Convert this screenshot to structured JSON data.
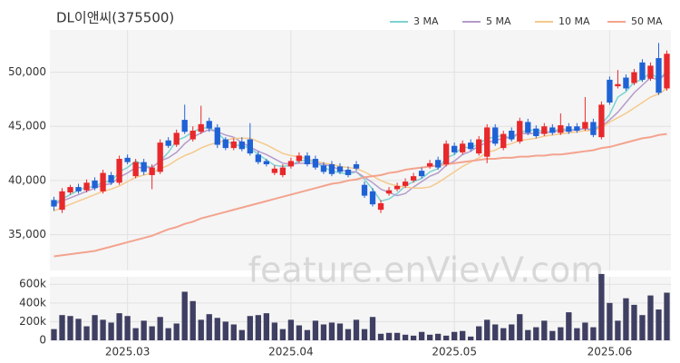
{
  "chart_data": {
    "type": "candlestick",
    "title": "DL이앤씨(375500)",
    "watermark": "feature.enVievV.com",
    "up_color": "#e8282b",
    "down_color": "#1f62d6",
    "ylim": [
      31700,
      53900
    ],
    "yticks": [
      {
        "value": 35000,
        "label": "35,000"
      },
      {
        "value": 40000,
        "label": "40,000"
      },
      {
        "value": 45000,
        "label": "45,000"
      },
      {
        "value": 50000,
        "label": "50,000"
      }
    ],
    "xticks": [
      {
        "value": 9,
        "label": "2025.03"
      },
      {
        "value": 29,
        "label": "2025.04"
      },
      {
        "value": 49,
        "label": "2025.05"
      },
      {
        "value": 68,
        "label": "2025.06"
      }
    ],
    "grid": true,
    "legend": "top-right",
    "open": [
      38200,
      37300,
      38900,
      39400,
      39100,
      40000,
      39000,
      40500,
      39800,
      42100,
      40400,
      41700,
      40500,
      40800,
      43700,
      43300,
      45600,
      43800,
      44500,
      45500,
      44900,
      43800,
      43000,
      43600,
      43800,
      42400,
      41800,
      40700,
      40500,
      41300,
      41800,
      42300,
      42000,
      41400,
      41500,
      41300,
      41000,
      41500,
      39600,
      39000,
      37300,
      38800,
      39200,
      39500,
      40000,
      40900,
      41300,
      41900,
      41500,
      43200,
      42600,
      43500,
      42500,
      42200,
      44900,
      43000,
      44600,
      43600,
      45400,
      44800,
      44300,
      44900,
      44400,
      45000,
      45000,
      44800,
      45400,
      44000,
      49300,
      48700,
      49500,
      49000,
      50900,
      49400,
      51300,
      48500
    ],
    "high": [
      38500,
      39300,
      39600,
      39700,
      40100,
      40300,
      41000,
      40800,
      42300,
      42400,
      42000,
      42000,
      41500,
      43800,
      44000,
      44700,
      47000,
      45000,
      46900,
      45800,
      45200,
      44000,
      43900,
      44000,
      45300,
      42700,
      42000,
      41400,
      41500,
      42100,
      42600,
      42600,
      42300,
      41700,
      41800,
      41600,
      41300,
      41800,
      39900,
      39300,
      38200,
      39400,
      39800,
      40200,
      40700,
      41200,
      41900,
      42200,
      43700,
      43500,
      43700,
      43800,
      44100,
      45200,
      45200,
      44600,
      44900,
      45800,
      45700,
      45100,
      45300,
      45200,
      46200,
      45300,
      45300,
      47700,
      45700,
      47300,
      49600,
      50200,
      49800,
      50300,
      51200,
      50900,
      52700,
      52000
    ],
    "low": [
      37200,
      37000,
      38700,
      38800,
      38900,
      39100,
      38800,
      39600,
      39600,
      41500,
      40200,
      40500,
      39200,
      40600,
      43000,
      43100,
      44300,
      43600,
      44300,
      44500,
      43000,
      42800,
      42800,
      42700,
      42300,
      41500,
      41300,
      40500,
      40300,
      41100,
      41600,
      41300,
      41000,
      40600,
      40400,
      40600,
      40300,
      40900,
      38400,
      37600,
      37000,
      38600,
      39000,
      39300,
      39800,
      40200,
      41100,
      41000,
      41300,
      42400,
      42400,
      42700,
      42300,
      41600,
      43200,
      42800,
      43600,
      43400,
      44200,
      43900,
      44100,
      44200,
      44200,
      44300,
      44400,
      44600,
      44000,
      43800,
      47000,
      48500,
      48300,
      48800,
      49100,
      49200,
      47900,
      48300
    ],
    "close": [
      37600,
      39000,
      39400,
      39000,
      39800,
      39300,
      40700,
      39800,
      42000,
      41700,
      41700,
      40800,
      41200,
      43500,
      43200,
      44400,
      44500,
      44600,
      45200,
      44800,
      43300,
      43000,
      43600,
      42900,
      42500,
      41700,
      41500,
      41100,
      41200,
      41800,
      42300,
      41500,
      41200,
      40800,
      40600,
      40800,
      40500,
      41100,
      38600,
      37800,
      37900,
      39100,
      39500,
      39900,
      40400,
      40400,
      41600,
      41200,
      43400,
      42600,
      43400,
      42900,
      43800,
      44900,
      43400,
      44300,
      43800,
      45500,
      44400,
      44100,
      45000,
      44400,
      45100,
      44500,
      44600,
      45400,
      44200,
      47000,
      47200,
      48900,
      48500,
      50000,
      49300,
      50600,
      48100,
      51700
    ],
    "series": [
      {
        "name": "3 MA",
        "color": "#7dd3d3",
        "values": [
          37900,
          38300,
          38700,
          39100,
          39400,
          39400,
          39900,
          39900,
          40800,
          41200,
          41800,
          41400,
          41200,
          41800,
          42600,
          43700,
          44000,
          44500,
          44800,
          44900,
          44400,
          43700,
          43300,
          43200,
          43000,
          42400,
          41900,
          41400,
          41300,
          41400,
          41800,
          41900,
          41700,
          41200,
          40900,
          40700,
          40600,
          40800,
          40100,
          39200,
          38100,
          38300,
          38800,
          39500,
          39900,
          40200,
          40800,
          41100,
          42100,
          42400,
          43100,
          43000,
          43400,
          43900,
          44000,
          44200,
          43800,
          44500,
          44600,
          44700,
          44500,
          44500,
          44800,
          44700,
          44700,
          44800,
          44700,
          45200,
          46100,
          47700,
          48200,
          49100,
          49300,
          50000,
          49300,
          50100
        ]
      },
      {
        "name": "5 MA",
        "color": "#b49bcc",
        "values": [
          37800,
          38100,
          38400,
          38700,
          39000,
          39300,
          39600,
          39700,
          40300,
          40700,
          41200,
          41200,
          41200,
          41800,
          42100,
          42600,
          43400,
          44000,
          44400,
          44700,
          44500,
          44200,
          44000,
          43500,
          43100,
          42700,
          42400,
          42000,
          41600,
          41500,
          41600,
          41600,
          41600,
          41500,
          41300,
          41000,
          40800,
          40800,
          40300,
          39800,
          39200,
          38900,
          38600,
          38800,
          39400,
          39900,
          40400,
          40700,
          41400,
          41800,
          42400,
          42700,
          43200,
          43500,
          43700,
          43900,
          44000,
          44400,
          44300,
          44400,
          44400,
          44500,
          44600,
          44600,
          44700,
          44800,
          44600,
          45000,
          45600,
          46300,
          47200,
          48100,
          48800,
          49500,
          49300,
          49900
        ]
      },
      {
        "name": "10 MA",
        "color": "#f5c98c",
        "values": [
          37200,
          37500,
          37800,
          38100,
          38400,
          38700,
          39000,
          39200,
          39500,
          39900,
          40300,
          40500,
          40700,
          41100,
          41400,
          41900,
          42300,
          42600,
          43000,
          43300,
          43500,
          43700,
          43900,
          43900,
          43900,
          43600,
          43300,
          42900,
          42500,
          42300,
          42200,
          42000,
          41800,
          41600,
          41500,
          41300,
          41200,
          41100,
          40800,
          40400,
          40000,
          39700,
          39500,
          39400,
          39300,
          39300,
          39400,
          39800,
          40300,
          40800,
          41300,
          41700,
          42100,
          42600,
          42800,
          43200,
          43400,
          43700,
          43800,
          43900,
          44100,
          44200,
          44300,
          44400,
          44500,
          44600,
          44600,
          44900,
          45400,
          45800,
          46200,
          46700,
          47200,
          47700,
          48000,
          48500
        ]
      },
      {
        "name": "50 MA",
        "color": "#f4a38e",
        "values": [
          33000,
          33100,
          33200,
          33300,
          33400,
          33500,
          33700,
          33900,
          34100,
          34300,
          34500,
          34700,
          34900,
          35200,
          35500,
          35700,
          36000,
          36200,
          36500,
          36700,
          36900,
          37100,
          37300,
          37500,
          37700,
          37900,
          38100,
          38300,
          38500,
          38700,
          38900,
          39100,
          39300,
          39500,
          39700,
          39800,
          40000,
          40100,
          40300,
          40400,
          40500,
          40700,
          40800,
          41000,
          41100,
          41200,
          41300,
          41400,
          41500,
          41600,
          41700,
          41800,
          41900,
          42000,
          42000,
          42100,
          42100,
          42200,
          42200,
          42300,
          42300,
          42400,
          42400,
          42500,
          42600,
          42700,
          42800,
          43000,
          43100,
          43300,
          43500,
          43700,
          43900,
          44000,
          44200,
          44300
        ]
      }
    ],
    "volume": {
      "color": "#3f3f63",
      "ylim": [
        0,
        680000
      ],
      "yticks": [
        0,
        {
          "value": 200000,
          "label": "200k"
        },
        {
          "value": 400000,
          "label": "400k"
        },
        {
          "value": 600000,
          "label": "600k"
        }
      ],
      "values": [
        120000,
        270000,
        260000,
        230000,
        150000,
        270000,
        220000,
        190000,
        290000,
        260000,
        130000,
        210000,
        150000,
        250000,
        130000,
        180000,
        520000,
        420000,
        220000,
        280000,
        240000,
        200000,
        170000,
        110000,
        260000,
        270000,
        290000,
        190000,
        120000,
        220000,
        160000,
        110000,
        210000,
        170000,
        190000,
        180000,
        120000,
        220000,
        120000,
        250000,
        70000,
        80000,
        80000,
        60000,
        50000,
        90000,
        60000,
        70000,
        50000,
        90000,
        100000,
        40000,
        150000,
        220000,
        170000,
        130000,
        170000,
        280000,
        110000,
        140000,
        210000,
        100000,
        140000,
        300000,
        130000,
        190000,
        140000,
        710000,
        400000,
        210000,
        450000,
        380000,
        270000,
        480000,
        330000,
        510000
      ]
    }
  }
}
